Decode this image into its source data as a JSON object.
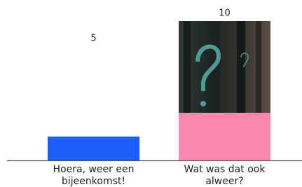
{
  "chart_data": {
    "type": "bar",
    "categories": [
      "Hoera, weer een bijeenkomst!",
      "Wat was dat ook alweer?"
    ],
    "series": [
      {
        "colors": [
          "#1c5ef6",
          "#f888ac"
        ],
        "values": [
          5,
          10
        ]
      }
    ],
    "ylim": [
      0,
      10
    ]
  }
}
